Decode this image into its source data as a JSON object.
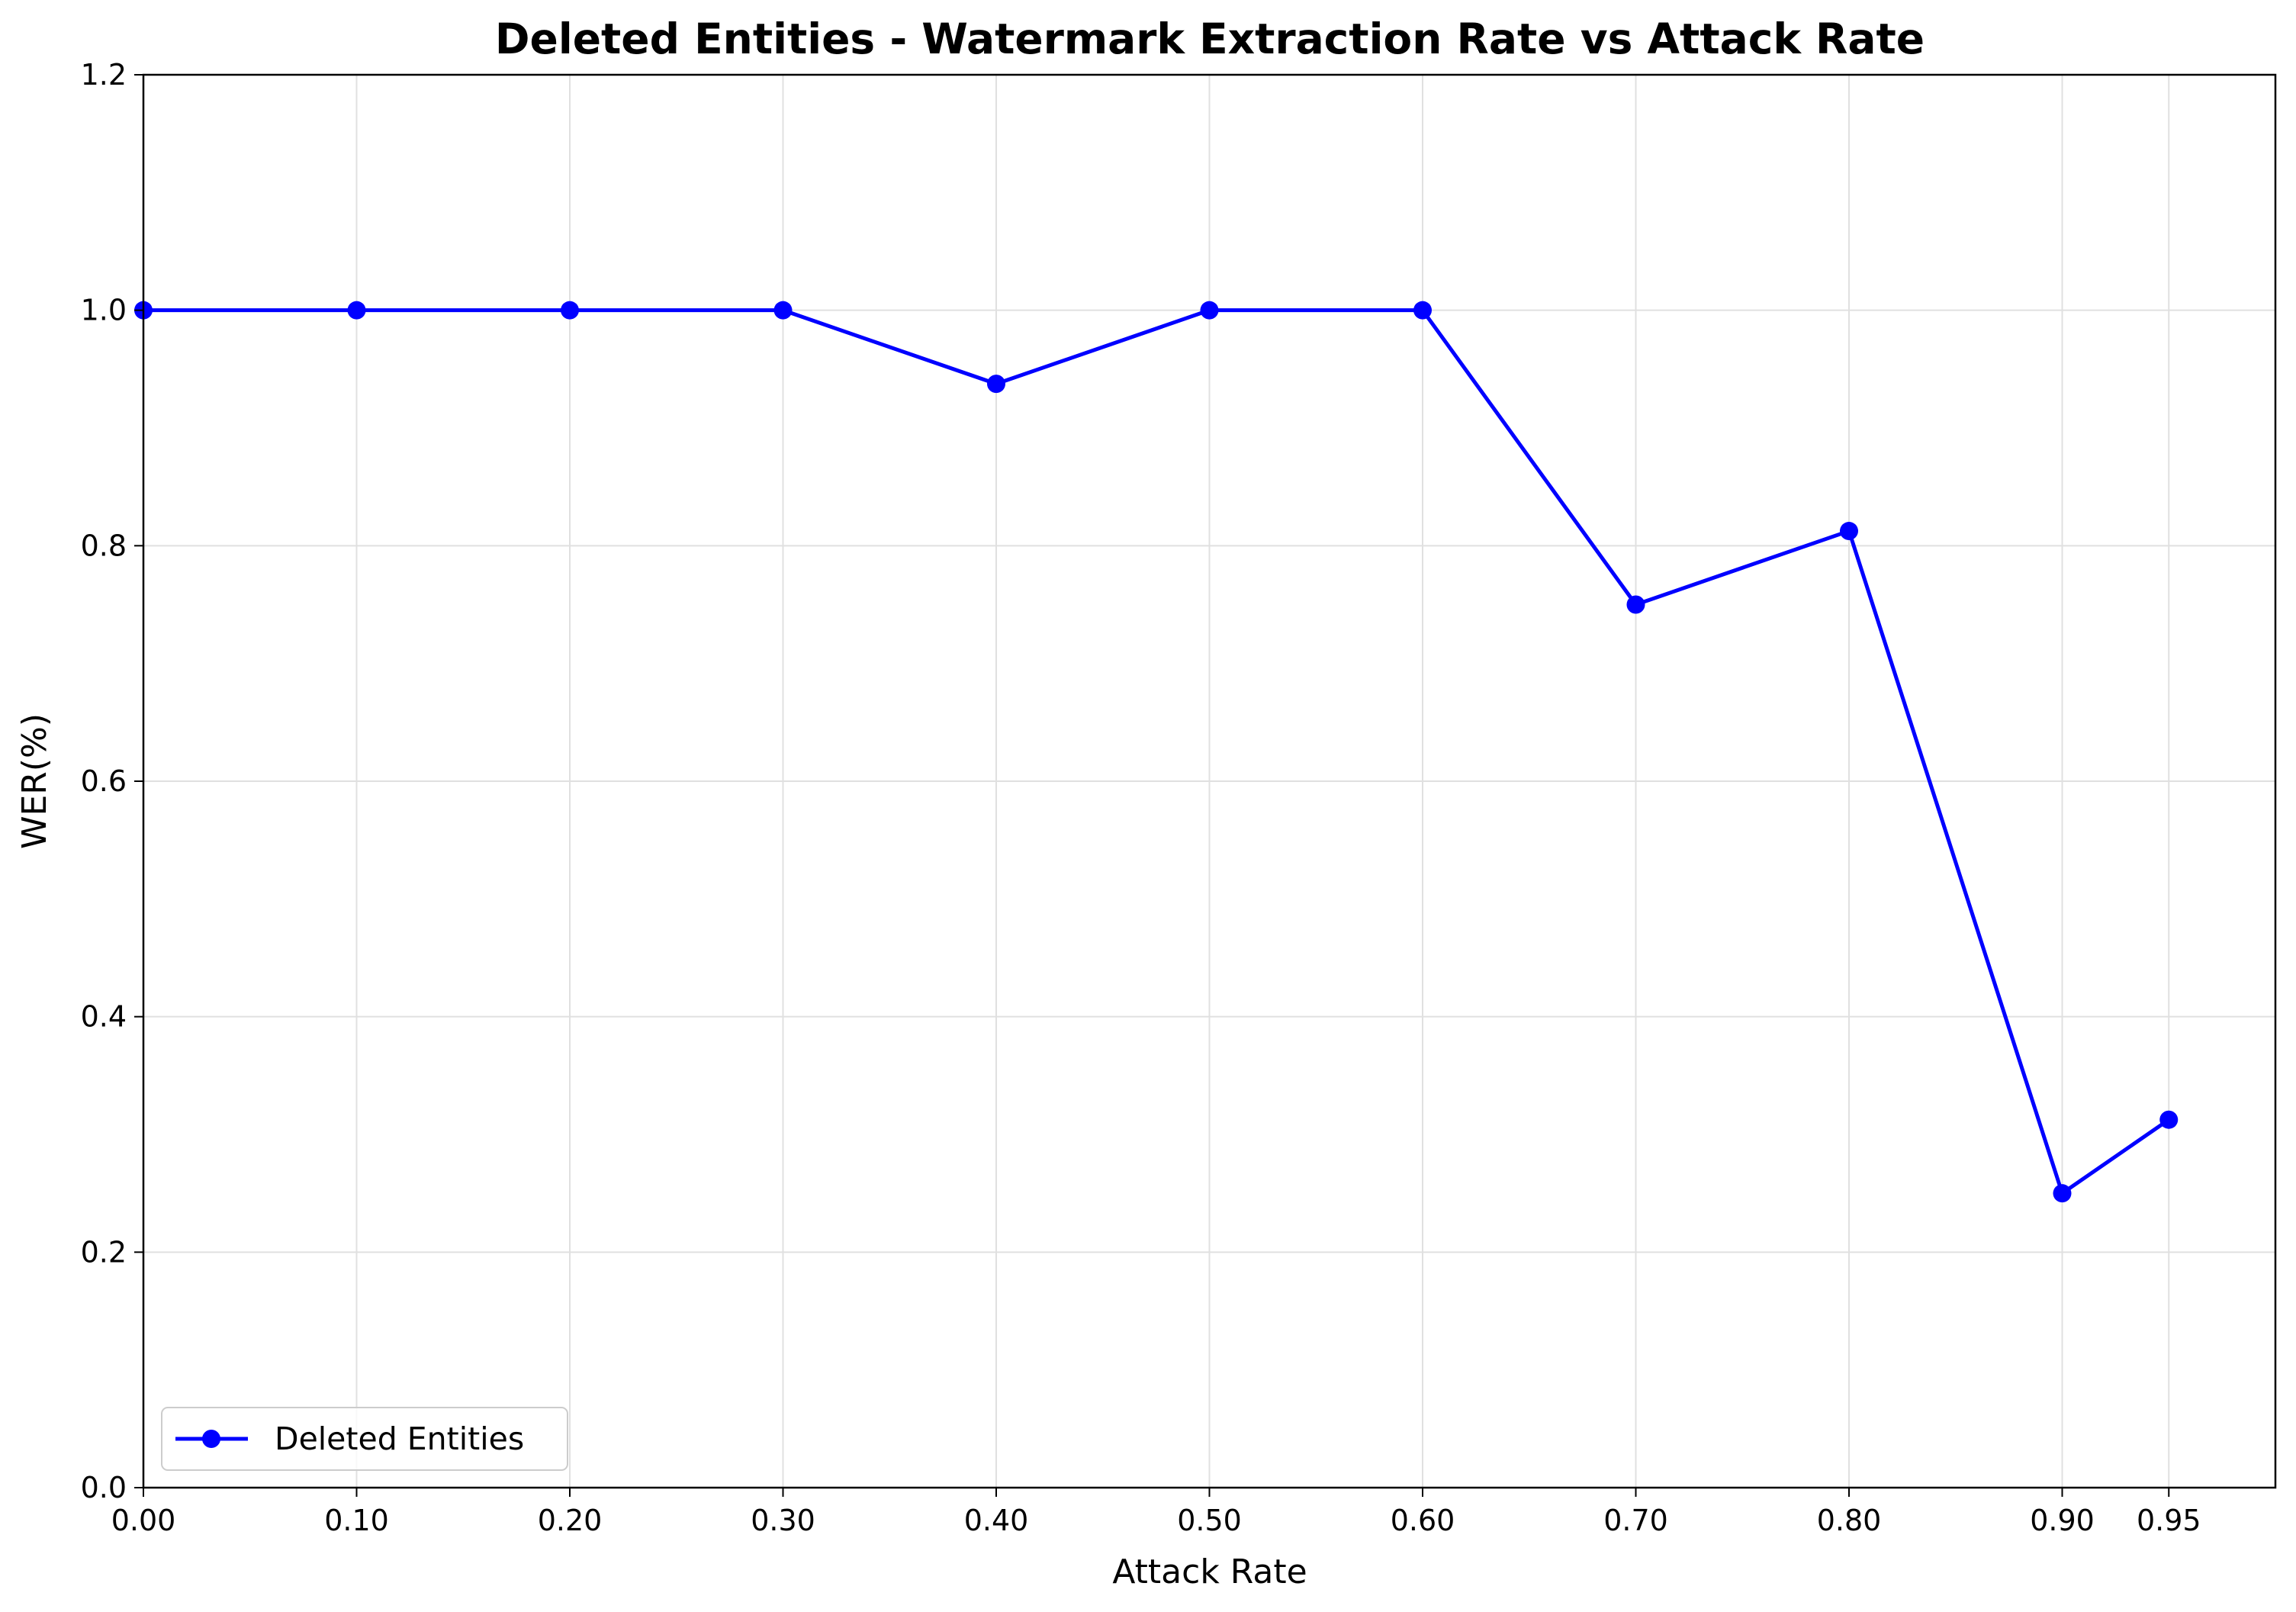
{
  "chart_data": {
    "type": "line",
    "title": "Deleted Entities - Watermark Extraction Rate vs Attack Rate",
    "xlabel": "Attack Rate",
    "ylabel": "WER(%)",
    "x": [
      0.0,
      0.1,
      0.2,
      0.3,
      0.4,
      0.5,
      0.6,
      0.7,
      0.8,
      0.9,
      0.95
    ],
    "series": [
      {
        "name": "Deleted Entities",
        "color": "#0000ff",
        "marker": "circle",
        "values": [
          1.0,
          1.0,
          1.0,
          1.0,
          0.9375,
          1.0,
          1.0,
          0.75,
          0.8125,
          0.25,
          0.3125
        ]
      }
    ],
    "xlim": [
      0.0,
      1.0
    ],
    "ylim": [
      0.0,
      1.2
    ],
    "xticks": [
      0.0,
      0.1,
      0.2,
      0.3,
      0.4,
      0.5,
      0.6,
      0.7,
      0.8,
      0.9,
      0.95
    ],
    "xtick_labels": [
      "0.00",
      "0.10",
      "0.20",
      "0.30",
      "0.40",
      "0.50",
      "0.60",
      "0.70",
      "0.80",
      "0.90",
      "0.95"
    ],
    "yticks": [
      0.0,
      0.2,
      0.4,
      0.6,
      0.8,
      1.0,
      1.2
    ],
    "ytick_labels": [
      "0.0",
      "0.2",
      "0.4",
      "0.6",
      "0.8",
      "1.0",
      "1.2"
    ],
    "grid": true,
    "legend_position": "lower-left"
  }
}
